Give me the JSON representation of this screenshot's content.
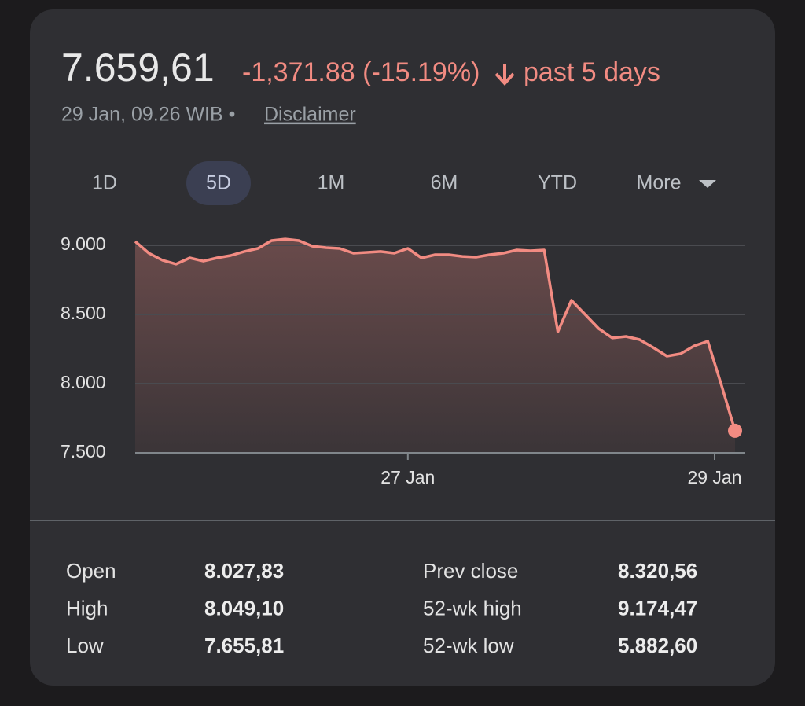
{
  "header": {
    "price": "7.659,61",
    "change": "-1,371.88 (-15.19%)",
    "period": "past 5 days",
    "timestamp": "29 Jan, 09.26 WIB •",
    "disclaimer": "Disclaimer"
  },
  "tabs": [
    "1D",
    "5D",
    "1M",
    "6M",
    "YTD",
    "More"
  ],
  "selected_tab": "5D",
  "chart_data": {
    "type": "line",
    "color": "#f28b82",
    "values": [
      9028,
      8943,
      8892,
      8864,
      8909,
      8886,
      8909,
      8926,
      8955,
      8977,
      9034,
      9045,
      9034,
      8994,
      8983,
      8977,
      8943,
      8949,
      8955,
      8943,
      8977,
      8909,
      8932,
      8932,
      8920,
      8915,
      8932,
      8943,
      8966,
      8960,
      8966,
      8375,
      8602,
      8500,
      8398,
      8330,
      8341,
      8318,
      8261,
      8199,
      8216,
      8273,
      8307,
      7989,
      7659.61
    ],
    "ylim": [
      7500,
      9000
    ],
    "yticks": [
      {
        "value": 9000,
        "label": "9.000"
      },
      {
        "value": 8500,
        "label": "8.500"
      },
      {
        "value": 8000,
        "label": "8.000"
      },
      {
        "value": 7500,
        "label": "7.500"
      }
    ],
    "xlim": [
      0,
      44
    ],
    "xticks": [
      {
        "value": 20,
        "label": "27 Jan"
      },
      {
        "value": 42.5,
        "label": "29 Jan"
      }
    ],
    "grid": true
  },
  "stats": {
    "rows": [
      [
        "Open",
        "8.027,83",
        "Prev close",
        "8.320,56"
      ],
      [
        "High",
        "8.049,10",
        "52-wk high",
        "9.174,47"
      ],
      [
        "Low",
        "7.655,81",
        "52-wk low",
        "5.882,60"
      ]
    ]
  }
}
